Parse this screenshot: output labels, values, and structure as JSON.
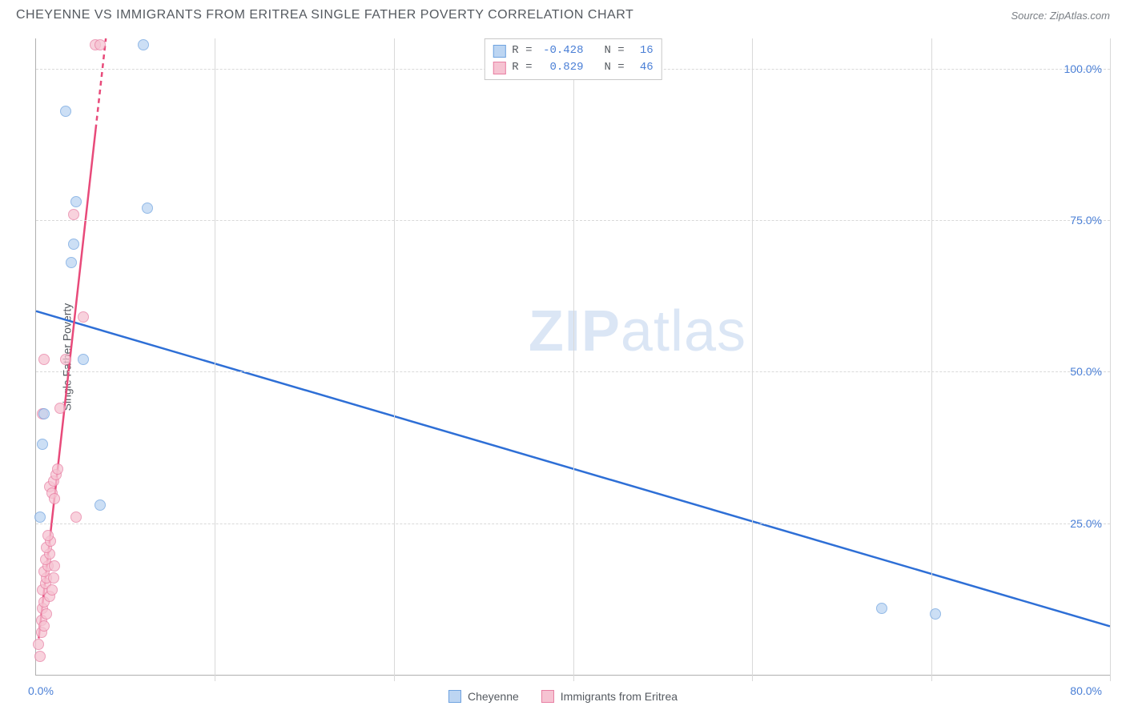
{
  "header": {
    "title": "CHEYENNE VS IMMIGRANTS FROM ERITREA SINGLE FATHER POVERTY CORRELATION CHART",
    "source_label": "Source: ",
    "source_name": "ZipAtlas.com"
  },
  "axes": {
    "ylabel": "Single Father Poverty",
    "xlim": [
      0,
      80
    ],
    "ylim": [
      0,
      105
    ],
    "x_min_label": "0.0%",
    "x_max_label": "80.0%",
    "ytick_values": [
      25,
      50,
      75,
      100
    ],
    "ytick_labels": [
      "25.0%",
      "50.0%",
      "75.0%",
      "100.0%"
    ],
    "xgrid_values": [
      13.33,
      26.67,
      40,
      53.33,
      66.67,
      80
    ],
    "grid_color": "#d9d9d9",
    "axis_color": "#b0b0b0",
    "label_color": "#555a60",
    "tick_color": "#4a7fd6"
  },
  "series": {
    "a": {
      "name": "Cheyenne",
      "color_fill": "#bcd5f2",
      "color_stroke": "#6fa3e0",
      "line_color": "#2e6fd6",
      "R": "-0.428",
      "N": "16",
      "trend": {
        "x1": 0,
        "y1": 60,
        "x2": 80,
        "y2": 8
      },
      "points": [
        {
          "x": 0.3,
          "y": 26
        },
        {
          "x": 0.5,
          "y": 38
        },
        {
          "x": 0.6,
          "y": 43
        },
        {
          "x": 2.6,
          "y": 68
        },
        {
          "x": 2.8,
          "y": 71
        },
        {
          "x": 3.0,
          "y": 78
        },
        {
          "x": 2.2,
          "y": 93
        },
        {
          "x": 4.8,
          "y": 28
        },
        {
          "x": 8.0,
          "y": 104
        },
        {
          "x": 8.3,
          "y": 77
        },
        {
          "x": 3.5,
          "y": 52
        },
        {
          "x": 63.0,
          "y": 11
        },
        {
          "x": 67.0,
          "y": 10
        }
      ]
    },
    "b": {
      "name": "Immigrants from Eritrea",
      "color_fill": "#f6c3d2",
      "color_stroke": "#e87fa3",
      "line_color": "#e84a7a",
      "R": "0.829",
      "N": "46",
      "trend": {
        "x1": 0.2,
        "y1": 6,
        "x2": 5.2,
        "y2": 105
      },
      "dash_from_y": 90,
      "points": [
        {
          "x": 0.2,
          "y": 5
        },
        {
          "x": 0.3,
          "y": 3
        },
        {
          "x": 0.4,
          "y": 9
        },
        {
          "x": 0.5,
          "y": 11
        },
        {
          "x": 0.6,
          "y": 12
        },
        {
          "x": 0.5,
          "y": 14
        },
        {
          "x": 0.7,
          "y": 15
        },
        {
          "x": 0.8,
          "y": 16
        },
        {
          "x": 0.6,
          "y": 17
        },
        {
          "x": 0.9,
          "y": 18
        },
        {
          "x": 0.7,
          "y": 19
        },
        {
          "x": 1.0,
          "y": 20
        },
        {
          "x": 0.8,
          "y": 21
        },
        {
          "x": 1.1,
          "y": 22
        },
        {
          "x": 0.9,
          "y": 23
        },
        {
          "x": 1.0,
          "y": 13
        },
        {
          "x": 0.4,
          "y": 7
        },
        {
          "x": 0.6,
          "y": 8
        },
        {
          "x": 1.2,
          "y": 14
        },
        {
          "x": 1.3,
          "y": 16
        },
        {
          "x": 0.8,
          "y": 10
        },
        {
          "x": 1.4,
          "y": 18
        },
        {
          "x": 1.0,
          "y": 31
        },
        {
          "x": 1.3,
          "y": 32
        },
        {
          "x": 1.5,
          "y": 33
        },
        {
          "x": 1.6,
          "y": 34
        },
        {
          "x": 1.2,
          "y": 30
        },
        {
          "x": 1.4,
          "y": 29
        },
        {
          "x": 0.5,
          "y": 43
        },
        {
          "x": 1.8,
          "y": 44
        },
        {
          "x": 0.6,
          "y": 52
        },
        {
          "x": 2.2,
          "y": 52
        },
        {
          "x": 3.5,
          "y": 59
        },
        {
          "x": 2.8,
          "y": 76
        },
        {
          "x": 3.0,
          "y": 26
        },
        {
          "x": 4.4,
          "y": 104
        },
        {
          "x": 4.8,
          "y": 104
        }
      ]
    }
  },
  "legend_top": {
    "r_label": "R =",
    "n_label": "N =",
    "text_color": "#555a60",
    "value_color": "#4a7fd6"
  },
  "legend_bottom": {
    "text_color": "#555a60"
  },
  "watermark": {
    "zip": "ZIP",
    "atlas": "atlas",
    "color": "#dbe6f5"
  }
}
